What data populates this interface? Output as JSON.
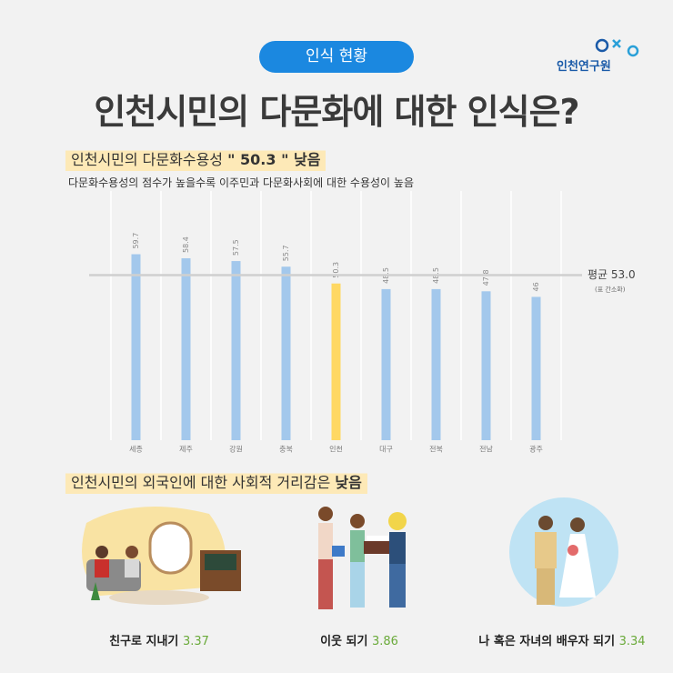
{
  "badge": "인식 현황",
  "logo": "인천연구원",
  "title": "인천시민의 다문화에 대한 인식은?",
  "section1": {
    "heading": "인천시민의 다문화수용성",
    "heading_em": "\" 50.3 \" 낮음",
    "subtitle": "다문화수용성의 점수가 높을수록 이주민과 다문화사회에 대한 수용성이 높음"
  },
  "chart_data": {
    "type": "bar",
    "categories": [
      "세종",
      "제주",
      "강원",
      "충북",
      "인천",
      "대구",
      "전북",
      "전남",
      "광주"
    ],
    "values": [
      59.7,
      58.4,
      57.5,
      55.7,
      50.3,
      48.5,
      48.5,
      47.8,
      46
    ],
    "colors": [
      "#a3c8ec",
      "#a3c8ec",
      "#a3c8ec",
      "#a3c8ec",
      "#ffd863",
      "#a3c8ec",
      "#a3c8ec",
      "#a3c8ec",
      "#a3c8ec"
    ],
    "ylim": [
      0,
      80
    ],
    "reference": {
      "value": 53,
      "label": "평균 53.0",
      "note": "(표 간소화)"
    }
  },
  "section2": {
    "heading": "인천시민의 외국인에 대한 사회적 거리감은",
    "heading_em": "낮음",
    "items": [
      {
        "label": "친구로 지내기",
        "score": "3.37"
      },
      {
        "label": "이웃 되기",
        "score": "3.86"
      },
      {
        "label": "나 혹은 자녀의 배우자 되기",
        "score": "3.34"
      }
    ]
  }
}
